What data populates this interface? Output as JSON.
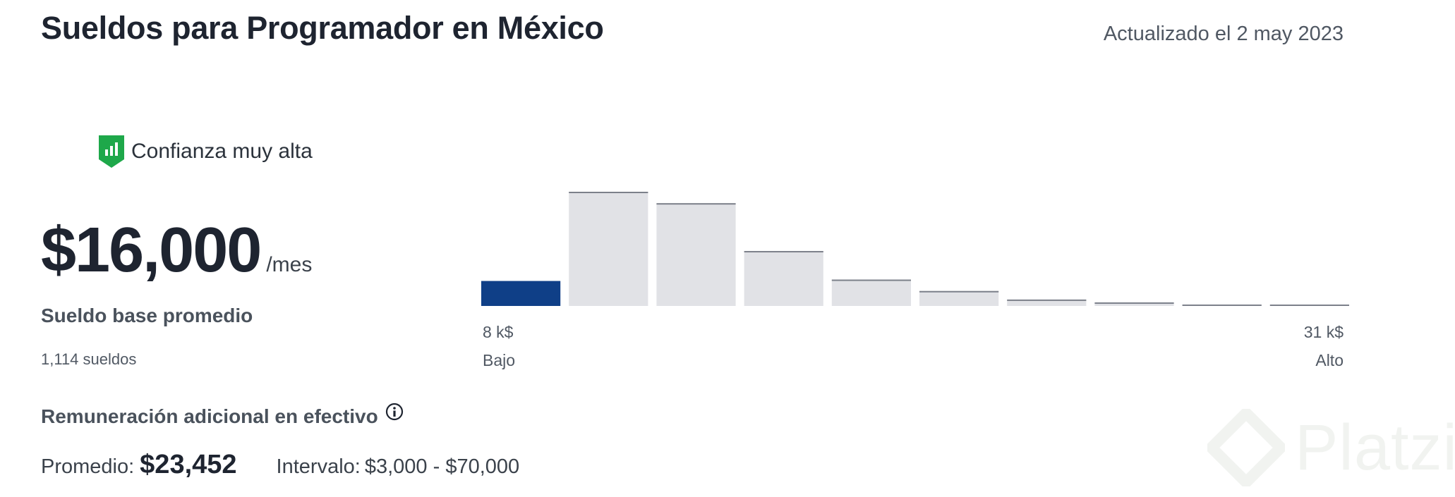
{
  "header": {
    "title": "Sueldos para Programador en México",
    "updated": "Actualizado el 2 may 2023"
  },
  "confidence": {
    "label": "Confianza muy alta",
    "icon": "confidence-shield-icon",
    "color": "#1ea84a"
  },
  "salary": {
    "amount": "$16,000",
    "period": "/mes",
    "label": "Sueldo base promedio",
    "count": "1,114 sueldos"
  },
  "chart_data": {
    "type": "bar",
    "values": [
      35,
      160,
      144,
      77,
      37,
      21,
      9,
      5,
      2,
      1
    ],
    "highlight_index": 0,
    "highlight_color": "#0f3f87",
    "bar_color": "#e1e2e6",
    "bar_top_color": "#7c808a",
    "x_start_label": "8 k$",
    "x_end_label": "31 k$",
    "low_label": "Bajo",
    "high_label": "Alto"
  },
  "additional": {
    "title": "Remuneración adicional en efectivo",
    "info_icon": "info-icon",
    "average_label": "Promedio:",
    "average_value": "$23,452",
    "range_label": "Intervalo:",
    "range_value": "$3,000 - $70,000"
  },
  "watermark": {
    "text": "Platzi",
    "icon": "platzi-logo-icon"
  }
}
